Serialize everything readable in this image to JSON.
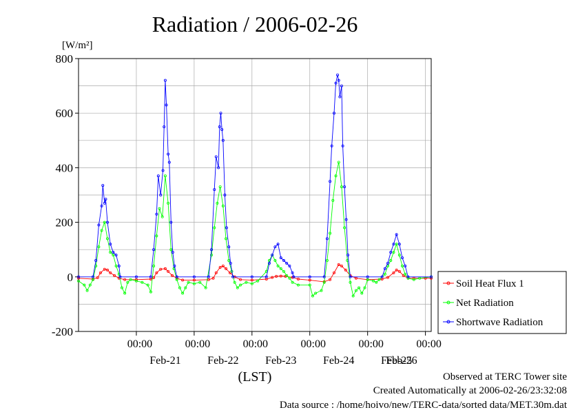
{
  "chart_data": {
    "type": "line",
    "title": "Radiation / 2006-02-26",
    "ylabel": "[W/m²]",
    "xlabel": "(LST)",
    "ylim": [
      -200,
      800
    ],
    "yticks": [
      -200,
      0,
      200,
      400,
      600,
      800
    ],
    "xlim": [
      0,
      6.1
    ],
    "x_unit": "days since Feb-20 00:00 LST",
    "x_tick_labels": [
      {
        "x": 1.0,
        "time": "00:00",
        "date": ""
      },
      {
        "x": 1.5,
        "time": "",
        "date": "Feb-21"
      },
      {
        "x": 2.0,
        "time": "00:00",
        "date": ""
      },
      {
        "x": 2.5,
        "time": "",
        "date": "Feb-22"
      },
      {
        "x": 3.0,
        "time": "00:00",
        "date": ""
      },
      {
        "x": 3.5,
        "time": "",
        "date": "Feb-23"
      },
      {
        "x": 4.0,
        "time": "00:00",
        "date": ""
      },
      {
        "x": 4.5,
        "time": "",
        "date": "Feb-24"
      },
      {
        "x": 5.0,
        "time": "00:00",
        "date": ""
      },
      {
        "x": 5.5,
        "time": "",
        "date": "Feb-25"
      },
      {
        "x": 6.0,
        "time": "00:00",
        "date": ""
      }
    ],
    "date_labels_extra": [
      {
        "x": 6.5,
        "date": "Feb-26"
      }
    ],
    "legend_position": "right",
    "grid": true,
    "series": [
      {
        "name": "Soil Heat Flux 1",
        "color": "#ff0000",
        "points": [
          [
            0,
            -5
          ],
          [
            0.25,
            -8
          ],
          [
            0.33,
            -3
          ],
          [
            0.38,
            15
          ],
          [
            0.45,
            28
          ],
          [
            0.5,
            25
          ],
          [
            0.55,
            15
          ],
          [
            0.62,
            5
          ],
          [
            0.7,
            -5
          ],
          [
            0.8,
            -10
          ],
          [
            1.0,
            -10
          ],
          [
            1.25,
            -8
          ],
          [
            1.3,
            -3
          ],
          [
            1.35,
            15
          ],
          [
            1.42,
            28
          ],
          [
            1.5,
            30
          ],
          [
            1.55,
            20
          ],
          [
            1.62,
            5
          ],
          [
            1.7,
            -5
          ],
          [
            1.8,
            -12
          ],
          [
            2.0,
            -12
          ],
          [
            2.25,
            -10
          ],
          [
            2.33,
            -5
          ],
          [
            2.38,
            15
          ],
          [
            2.45,
            35
          ],
          [
            2.5,
            40
          ],
          [
            2.55,
            30
          ],
          [
            2.62,
            15
          ],
          [
            2.7,
            0
          ],
          [
            2.8,
            -10
          ],
          [
            3.0,
            -12
          ],
          [
            3.25,
            -8
          ],
          [
            3.35,
            -2
          ],
          [
            3.42,
            2
          ],
          [
            3.5,
            3
          ],
          [
            3.58,
            2
          ],
          [
            3.7,
            -2
          ],
          [
            3.8,
            -8
          ],
          [
            4.0,
            -12
          ],
          [
            4.25,
            -18
          ],
          [
            4.35,
            -10
          ],
          [
            4.42,
            15
          ],
          [
            4.5,
            45
          ],
          [
            4.55,
            40
          ],
          [
            4.62,
            25
          ],
          [
            4.7,
            5
          ],
          [
            4.8,
            -5
          ],
          [
            5.0,
            -10
          ],
          [
            5.25,
            -8
          ],
          [
            5.35,
            -2
          ],
          [
            5.45,
            15
          ],
          [
            5.5,
            25
          ],
          [
            5.55,
            20
          ],
          [
            5.62,
            5
          ],
          [
            5.7,
            -5
          ],
          [
            5.8,
            -5
          ],
          [
            6.0,
            -5
          ],
          [
            6.1,
            -5
          ]
        ]
      },
      {
        "name": "Net Radiation",
        "color": "#00ff00",
        "points": [
          [
            0,
            -15
          ],
          [
            0.1,
            -30
          ],
          [
            0.15,
            -50
          ],
          [
            0.2,
            -30
          ],
          [
            0.25,
            -10
          ],
          [
            0.3,
            40
          ],
          [
            0.35,
            110
          ],
          [
            0.4,
            170
          ],
          [
            0.45,
            200
          ],
          [
            0.5,
            140
          ],
          [
            0.55,
            90
          ],
          [
            0.6,
            80
          ],
          [
            0.65,
            40
          ],
          [
            0.7,
            10
          ],
          [
            0.75,
            -40
          ],
          [
            0.8,
            -60
          ],
          [
            0.85,
            -20
          ],
          [
            0.9,
            -10
          ],
          [
            1.0,
            -15
          ],
          [
            1.1,
            -20
          ],
          [
            1.2,
            -30
          ],
          [
            1.25,
            -55
          ],
          [
            1.3,
            40
          ],
          [
            1.35,
            150
          ],
          [
            1.4,
            250
          ],
          [
            1.45,
            220
          ],
          [
            1.5,
            370
          ],
          [
            1.55,
            270
          ],
          [
            1.6,
            100
          ],
          [
            1.65,
            30
          ],
          [
            1.7,
            -10
          ],
          [
            1.75,
            -40
          ],
          [
            1.8,
            -60
          ],
          [
            1.85,
            -40
          ],
          [
            1.9,
            -20
          ],
          [
            2.0,
            -25
          ],
          [
            2.1,
            -20
          ],
          [
            2.2,
            -40
          ],
          [
            2.3,
            80
          ],
          [
            2.35,
            180
          ],
          [
            2.4,
            270
          ],
          [
            2.45,
            330
          ],
          [
            2.5,
            260
          ],
          [
            2.55,
            140
          ],
          [
            2.6,
            60
          ],
          [
            2.65,
            20
          ],
          [
            2.7,
            -20
          ],
          [
            2.75,
            -40
          ],
          [
            2.8,
            -30
          ],
          [
            2.9,
            -20
          ],
          [
            3.0,
            -25
          ],
          [
            3.1,
            -15
          ],
          [
            3.25,
            20
          ],
          [
            3.3,
            60
          ],
          [
            3.35,
            80
          ],
          [
            3.4,
            60
          ],
          [
            3.45,
            40
          ],
          [
            3.5,
            30
          ],
          [
            3.55,
            20
          ],
          [
            3.6,
            5
          ],
          [
            3.65,
            -5
          ],
          [
            3.7,
            -20
          ],
          [
            3.8,
            -30
          ],
          [
            4.0,
            -30
          ],
          [
            4.05,
            -70
          ],
          [
            4.1,
            -60
          ],
          [
            4.2,
            -50
          ],
          [
            4.25,
            -20
          ],
          [
            4.3,
            60
          ],
          [
            4.35,
            160
          ],
          [
            4.4,
            280
          ],
          [
            4.45,
            370
          ],
          [
            4.5,
            420
          ],
          [
            4.55,
            330
          ],
          [
            4.6,
            180
          ],
          [
            4.65,
            60
          ],
          [
            4.7,
            -20
          ],
          [
            4.75,
            -70
          ],
          [
            4.8,
            -50
          ],
          [
            4.85,
            -40
          ],
          [
            4.9,
            -60
          ],
          [
            4.95,
            -40
          ],
          [
            5.0,
            -10
          ],
          [
            5.1,
            -15
          ],
          [
            5.15,
            -20
          ],
          [
            5.2,
            -10
          ],
          [
            5.3,
            10
          ],
          [
            5.35,
            40
          ],
          [
            5.4,
            60
          ],
          [
            5.45,
            90
          ],
          [
            5.5,
            120
          ],
          [
            5.55,
            80
          ],
          [
            5.6,
            40
          ],
          [
            5.65,
            10
          ],
          [
            5.7,
            -5
          ],
          [
            5.8,
            -10
          ],
          [
            5.9,
            -5
          ],
          [
            6.1,
            0
          ]
        ]
      },
      {
        "name": "Shortwave Radiation",
        "color": "#0000ff",
        "points": [
          [
            0,
            0
          ],
          [
            0.25,
            0
          ],
          [
            0.3,
            60
          ],
          [
            0.35,
            190
          ],
          [
            0.4,
            260
          ],
          [
            0.42,
            335
          ],
          [
            0.45,
            270
          ],
          [
            0.47,
            285
          ],
          [
            0.5,
            200
          ],
          [
            0.55,
            120
          ],
          [
            0.6,
            90
          ],
          [
            0.65,
            80
          ],
          [
            0.7,
            40
          ],
          [
            0.72,
            0
          ],
          [
            1.0,
            0
          ],
          [
            1.25,
            0
          ],
          [
            1.3,
            100
          ],
          [
            1.35,
            230
          ],
          [
            1.38,
            370
          ],
          [
            1.42,
            300
          ],
          [
            1.46,
            390
          ],
          [
            1.48,
            550
          ],
          [
            1.5,
            720
          ],
          [
            1.52,
            630
          ],
          [
            1.55,
            450
          ],
          [
            1.57,
            420
          ],
          [
            1.6,
            200
          ],
          [
            1.63,
            90
          ],
          [
            1.66,
            40
          ],
          [
            1.7,
            0
          ],
          [
            2.0,
            0
          ],
          [
            2.25,
            0
          ],
          [
            2.3,
            100
          ],
          [
            2.35,
            320
          ],
          [
            2.38,
            440
          ],
          [
            2.42,
            400
          ],
          [
            2.44,
            550
          ],
          [
            2.46,
            600
          ],
          [
            2.48,
            540
          ],
          [
            2.5,
            500
          ],
          [
            2.53,
            300
          ],
          [
            2.56,
            180
          ],
          [
            2.6,
            110
          ],
          [
            2.63,
            50
          ],
          [
            2.67,
            0
          ],
          [
            3.0,
            0
          ],
          [
            3.25,
            0
          ],
          [
            3.3,
            50
          ],
          [
            3.35,
            80
          ],
          [
            3.4,
            110
          ],
          [
            3.45,
            120
          ],
          [
            3.5,
            70
          ],
          [
            3.55,
            60
          ],
          [
            3.6,
            50
          ],
          [
            3.65,
            40
          ],
          [
            3.7,
            15
          ],
          [
            3.72,
            0
          ],
          [
            4.0,
            0
          ],
          [
            4.25,
            0
          ],
          [
            4.3,
            140
          ],
          [
            4.35,
            350
          ],
          [
            4.38,
            480
          ],
          [
            4.42,
            600
          ],
          [
            4.45,
            710
          ],
          [
            4.48,
            740
          ],
          [
            4.5,
            720
          ],
          [
            4.52,
            660
          ],
          [
            4.55,
            700
          ],
          [
            4.57,
            480
          ],
          [
            4.6,
            330
          ],
          [
            4.63,
            210
          ],
          [
            4.66,
            80
          ],
          [
            4.7,
            0
          ],
          [
            5.0,
            0
          ],
          [
            5.25,
            0
          ],
          [
            5.3,
            30
          ],
          [
            5.35,
            50
          ],
          [
            5.4,
            90
          ],
          [
            5.45,
            120
          ],
          [
            5.5,
            155
          ],
          [
            5.55,
            120
          ],
          [
            5.6,
            70
          ],
          [
            5.65,
            40
          ],
          [
            5.7,
            0
          ],
          [
            6.1,
            0
          ]
        ]
      }
    ]
  },
  "footer": {
    "line1": "Observed at TERC Tower site",
    "line2": "Created Automatically at 2006-02-26/23:32:08",
    "line3": "Data source : /home/hoivo/new/TERC-data/sorted  data/MET.30m.dat"
  }
}
